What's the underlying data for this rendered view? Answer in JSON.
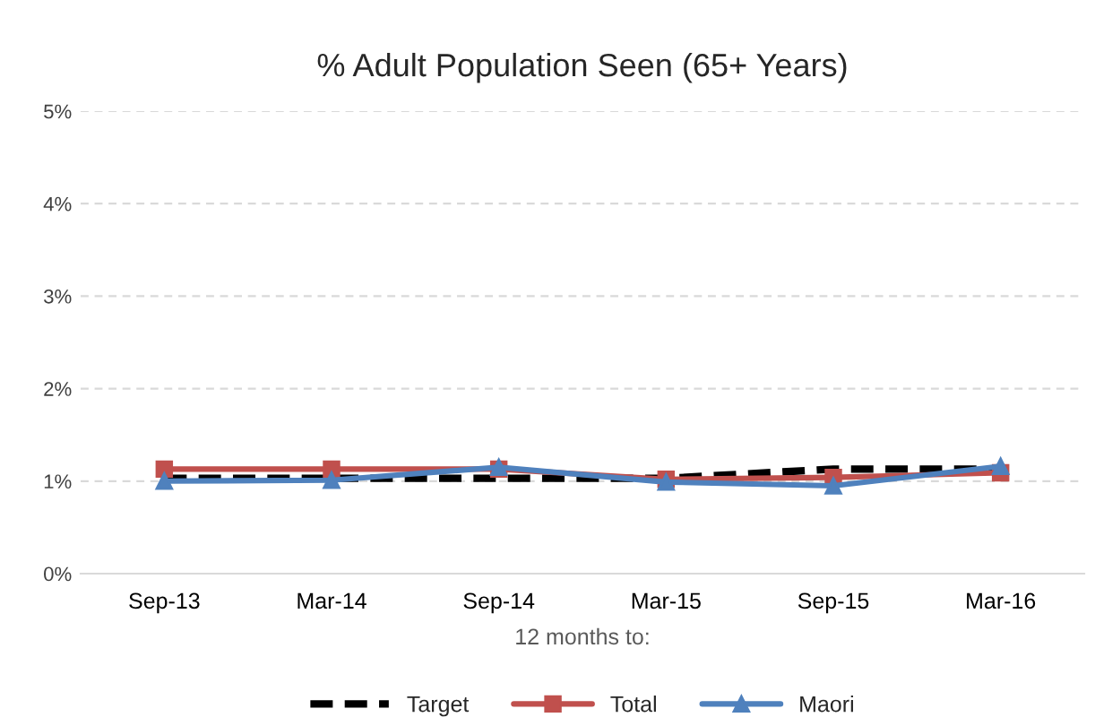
{
  "chart_data": {
    "type": "line",
    "title": "% Adult Population Seen (65+ Years)",
    "xlabel": "12 months to:",
    "categories": [
      "Sep-13",
      "Mar-14",
      "Sep-14",
      "Mar-15",
      "Sep-15",
      "Mar-16"
    ],
    "series": [
      {
        "name": "Target",
        "color": "#000000",
        "line_style": "dashed",
        "marker": "none",
        "values": [
          1.03,
          1.03,
          1.03,
          1.03,
          1.13,
          1.13
        ]
      },
      {
        "name": "Total",
        "color": "#c0504d",
        "line_style": "solid",
        "marker": "square",
        "values": [
          1.13,
          1.13,
          1.13,
          1.02,
          1.04,
          1.09
        ]
      },
      {
        "name": "Maori",
        "color": "#4f81bd",
        "line_style": "solid",
        "marker": "triangle",
        "values": [
          1.0,
          1.01,
          1.15,
          0.99,
          0.95,
          1.16
        ]
      }
    ],
    "ylim": [
      0,
      5
    ],
    "yticks": [
      {
        "value": 0,
        "label": "0%"
      },
      {
        "value": 1,
        "label": "1%"
      },
      {
        "value": 2,
        "label": "2%"
      },
      {
        "value": 3,
        "label": "3%"
      },
      {
        "value": 4,
        "label": "4%"
      },
      {
        "value": 5,
        "label": "5%"
      }
    ],
    "grid": "y",
    "legend": "bottom"
  }
}
